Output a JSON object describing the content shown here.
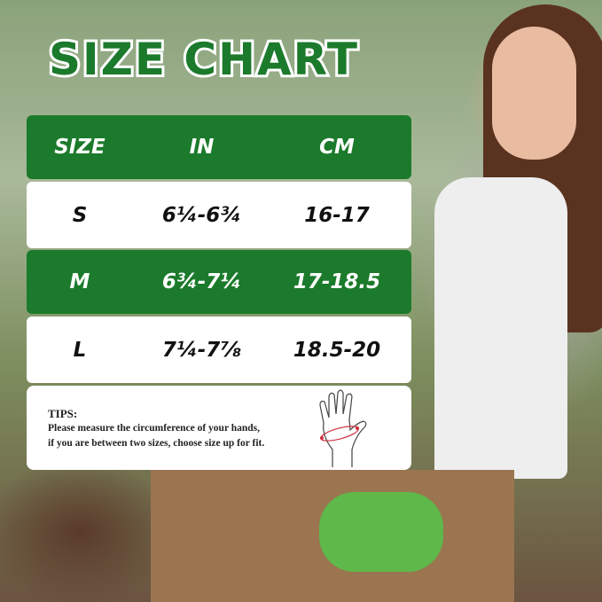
{
  "title": "SIZE CHART",
  "colors": {
    "accent": "#1b7a2b"
  },
  "table": {
    "headers": [
      "SIZE",
      "IN",
      "CM"
    ],
    "rows": [
      {
        "size": "S",
        "in": "6¼-6¾",
        "cm": "16-17"
      },
      {
        "size": "M",
        "in": "6¾-7¼",
        "cm": "17-18.5"
      },
      {
        "size": "L",
        "in": "7¼-7⅞",
        "cm": "18.5-20"
      }
    ]
  },
  "tips": {
    "title": "TIPS:",
    "line1": "Please measure the circumference of your hands,",
    "line2": "if you are between two sizes, choose size up for fit.",
    "icon": "hand-measure-icon"
  }
}
